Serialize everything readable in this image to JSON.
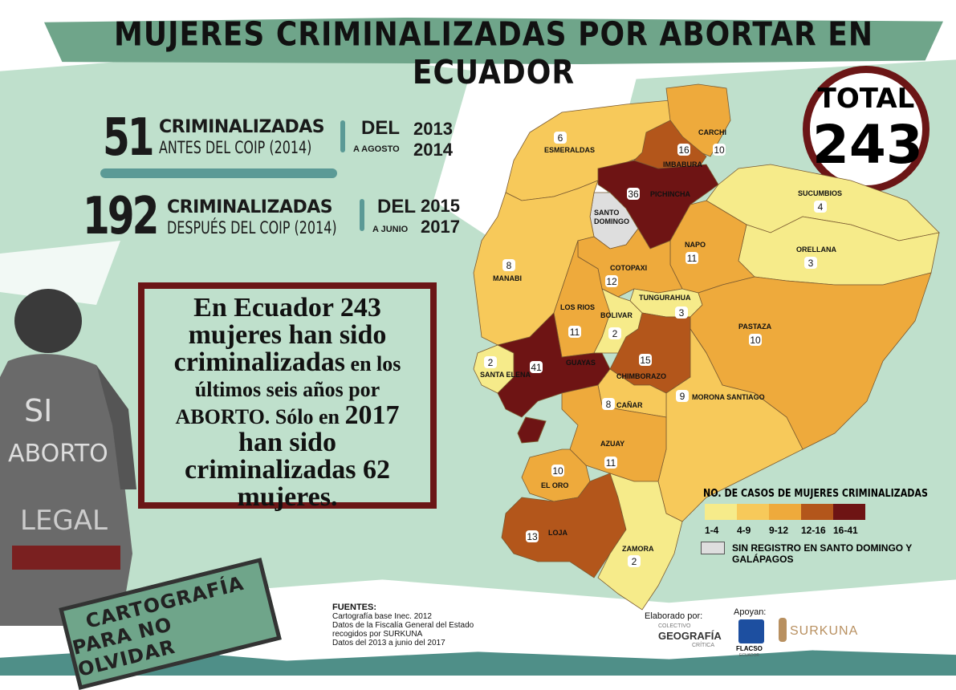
{
  "title": "MUJERES CRIMINALIZADAS POR ABORTAR EN ECUADOR",
  "total": {
    "label": "TOTAL",
    "value": "243"
  },
  "stats": [
    {
      "number": "51",
      "line1": "CRIMINALIZADAS",
      "line2": "ANTES DEL COIP (2014)",
      "del": "DEL",
      "from": "2013",
      "to_prefix": "A AGOSTO",
      "to": "2014"
    },
    {
      "number": "192",
      "line1": "CRIMINALIZADAS",
      "line2": "DESPUÉS DEL COIP (2014)",
      "del": "DEL",
      "from": "2015",
      "to_prefix": "A JUNIO",
      "to": "2017"
    }
  ],
  "quote": {
    "p1": "En Ecuador 243",
    "p2": "mujeres han sido",
    "p3": "criminalizadas",
    "p4": " en los",
    "p5": "últimos seis años por",
    "p6": "ABORTO.",
    "p7": " Sólo en ",
    "p8": "2017",
    "p9": "han sido",
    "p10": "criminalizadas 62",
    "p11": "mujeres."
  },
  "photo_text": "SI ABORTO LEGAL",
  "stamp": {
    "line1": "CARTOGRAFÍA",
    "line2": "PARA NO OLVIDAR"
  },
  "legend": {
    "title": "NO. DE  CASOS DE MUJERES CRIMINALIZADAS",
    "classes": [
      {
        "label": "1-4",
        "color": "#f6eb8a"
      },
      {
        "label": "4-9",
        "color": "#f7c95a"
      },
      {
        "label": "9-12",
        "color": "#eeaa3c"
      },
      {
        "label": "12-16",
        "color": "#b3561b"
      },
      {
        "label": "16-41",
        "color": "#6e1414"
      }
    ],
    "no_data": {
      "label": "SIN REGISTRO EN SANTO DOMINGO Y GALÁPAGOS",
      "color": "#dedede"
    }
  },
  "provinces": [
    {
      "name": "ESMERALDAS",
      "count": "6",
      "class": 1
    },
    {
      "name": "CARCHI",
      "count": "10",
      "class": 2
    },
    {
      "name": "IMBABURA",
      "count": "16",
      "class": 3
    },
    {
      "name": "PICHINCHA",
      "count": "36",
      "class": 4
    },
    {
      "name": "SANTO DOMINGO",
      "count": "",
      "class": -1
    },
    {
      "name": "SUCUMBIOS",
      "count": "4",
      "class": 0
    },
    {
      "name": "ORELLANA",
      "count": "3",
      "class": 0
    },
    {
      "name": "NAPO",
      "count": "11",
      "class": 2
    },
    {
      "name": "MANABI",
      "count": "8",
      "class": 1
    },
    {
      "name": "COTOPAXI",
      "count": "12",
      "class": 2
    },
    {
      "name": "LOS RIOS",
      "count": "11",
      "class": 2
    },
    {
      "name": "TUNGURAHUA",
      "count": "3",
      "class": 0
    },
    {
      "name": "BOLIVAR",
      "count": "2",
      "class": 0
    },
    {
      "name": "PASTAZA",
      "count": "10",
      "class": 2
    },
    {
      "name": "SANTA ELENA",
      "count": "2",
      "class": 0
    },
    {
      "name": "GUAYAS",
      "count": "41",
      "class": 4
    },
    {
      "name": "CHIMBORAZO",
      "count": "15",
      "class": 3
    },
    {
      "name": "MORONA SANTIAGO",
      "count": "9",
      "class": 1
    },
    {
      "name": "CAÑAR",
      "count": "8",
      "class": 1
    },
    {
      "name": "AZUAY",
      "count": "11",
      "class": 2
    },
    {
      "name": "EL ORO",
      "count": "10",
      "class": 2
    },
    {
      "name": "LOJA",
      "count": "13",
      "class": 3
    },
    {
      "name": "ZAMORA",
      "count": "2",
      "class": 0
    }
  ],
  "sources": {
    "heading": "FUENTES:",
    "lines": [
      "Cartografía base Inec. 2012",
      "Datos de la Fiscalía General del Estado",
      "recogidos por SURKUNA",
      "Datos del 2013 a junio del 2017"
    ]
  },
  "credits": {
    "made_by": "Elaborado por:",
    "made_by_org": {
      "top": "COLECTIVO",
      "main": "GEOGRAFÍA",
      "bottom": "CRÍTICA"
    },
    "support": "Apoyan:",
    "flasco": {
      "main": "FLACSO",
      "sub": "ECUADOR"
    },
    "surkuna": "SURKUNA"
  }
}
